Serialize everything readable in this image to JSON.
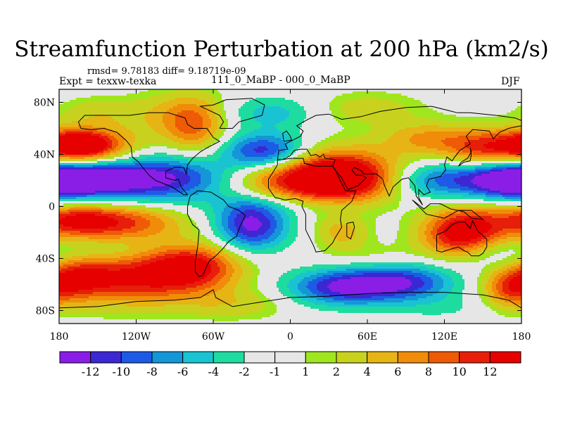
{
  "header": {
    "title": "Streamfunction Perturbation at 200 hPa (km2/s)",
    "stats": "rmsd= 9.78183 diff= 9.18719e-09",
    "expt": "Expt = texxw-texka",
    "experiment_names": "111_0_MaBP - 000_0_MaBP",
    "season": "DJF"
  },
  "chart_data": {
    "type": "heatmap",
    "title": "Streamfunction Perturbation at 200 hPa (km2/s)",
    "xlim": [
      -180,
      180
    ],
    "ylim": [
      -90,
      90
    ],
    "x_ticks": [
      {
        "value": -180,
        "label": "180"
      },
      {
        "value": -120,
        "label": "120W"
      },
      {
        "value": -60,
        "label": "60W"
      },
      {
        "value": 0,
        "label": "0"
      },
      {
        "value": 60,
        "label": "60E"
      },
      {
        "value": 120,
        "label": "120E"
      },
      {
        "value": 180,
        "label": "180"
      }
    ],
    "y_ticks": [
      {
        "value": 80,
        "label": "80N"
      },
      {
        "value": 40,
        "label": "40N"
      },
      {
        "value": 0,
        "label": "0"
      },
      {
        "value": -40,
        "label": "40S"
      },
      {
        "value": -80,
        "label": "80S"
      }
    ],
    "levels": [
      -12,
      -10,
      -8,
      -6,
      -4,
      -2,
      -1,
      1,
      2,
      4,
      6,
      8,
      10,
      12
    ],
    "level_labels": [
      "-12",
      "-10",
      "-8",
      "-6",
      "-4",
      "-2",
      "-1",
      "1",
      "2",
      "4",
      "6",
      "8",
      "10",
      "12"
    ],
    "colors": [
      "#8b1ee6",
      "#3c28d2",
      "#1e5ae6",
      "#1496d7",
      "#19c3d2",
      "#1edca0",
      "#e6e6e6",
      "#e6e6e6",
      "#a0e61e",
      "#c8d21e",
      "#e6b414",
      "#f08c0a",
      "#ee5a05",
      "#e61e0a",
      "#e60000"
    ],
    "features": [
      {
        "lon": -163,
        "lat": 47,
        "value": 12,
        "width": 18,
        "height": 8
      },
      {
        "lon": -150,
        "lat": 43,
        "value": 8,
        "width": 28,
        "height": 12
      },
      {
        "lon": -100,
        "lat": 22,
        "value": -13,
        "width": 42,
        "height": 13
      },
      {
        "lon": -155,
        "lat": 22,
        "value": -11,
        "width": 26,
        "height": 11
      },
      {
        "lon": -75,
        "lat": 60,
        "value": 7,
        "width": 16,
        "height": 16
      },
      {
        "lon": -90,
        "lat": 70,
        "value": 4,
        "width": 26,
        "height": 12
      },
      {
        "lon": -20,
        "lat": 42,
        "value": -12,
        "width": 22,
        "height": 10
      },
      {
        "lon": 10,
        "lat": 20,
        "value": 13,
        "width": 40,
        "height": 13
      },
      {
        "lon": 45,
        "lat": 24,
        "value": 11,
        "width": 28,
        "height": 14
      },
      {
        "lon": -30,
        "lat": -14,
        "value": -13,
        "width": 20,
        "height": 14
      },
      {
        "lon": -130,
        "lat": -12,
        "value": 10,
        "width": 32,
        "height": 10
      },
      {
        "lon": -165,
        "lat": -10,
        "value": 8,
        "width": 20,
        "height": 9
      },
      {
        "lon": -120,
        "lat": -55,
        "value": 12,
        "width": 42,
        "height": 14
      },
      {
        "lon": -75,
        "lat": -45,
        "value": 10,
        "width": 25,
        "height": 12
      },
      {
        "lon": -170,
        "lat": -55,
        "value": 8,
        "width": 20,
        "height": 12
      },
      {
        "lon": 40,
        "lat": -62,
        "value": -12,
        "width": 30,
        "height": 10
      },
      {
        "lon": 90,
        "lat": -58,
        "value": -10,
        "width": 28,
        "height": 10
      },
      {
        "lon": 130,
        "lat": -22,
        "value": 11,
        "width": 20,
        "height": 12
      },
      {
        "lon": 150,
        "lat": -12,
        "value": 7,
        "width": 24,
        "height": 12
      },
      {
        "lon": 120,
        "lat": 20,
        "value": -9,
        "width": 30,
        "height": 10
      },
      {
        "lon": 170,
        "lat": 20,
        "value": -12,
        "width": 22,
        "height": 11
      },
      {
        "lon": 155,
        "lat": 45,
        "value": 11,
        "width": 24,
        "height": 10
      },
      {
        "lon": 105,
        "lat": 52,
        "value": 6,
        "width": 24,
        "height": 9
      },
      {
        "lon": 40,
        "lat": -20,
        "value": 5,
        "width": 14,
        "height": 8
      },
      {
        "lon": -15,
        "lat": 72,
        "value": -5,
        "width": 25,
        "height": 9
      },
      {
        "lon": -150,
        "lat": 72,
        "value": 3,
        "width": 22,
        "height": 8
      },
      {
        "lon": 60,
        "lat": 75,
        "value": 3,
        "width": 30,
        "height": 9
      },
      {
        "lon": -150,
        "lat": -35,
        "value": -2,
        "width": 30,
        "height": 7
      },
      {
        "lon": 60,
        "lat": -38,
        "value": 2,
        "width": 30,
        "height": 7
      },
      {
        "lon": 0,
        "lat": 2,
        "value": -3,
        "width": 40,
        "height": 7
      },
      {
        "lon": 165,
        "lat": -40,
        "value": -3,
        "width": 20,
        "height": 9
      },
      {
        "lon": 170,
        "lat": -65,
        "value": 6,
        "width": 14,
        "height": 10
      },
      {
        "lon": -40,
        "lat": -75,
        "value": 3,
        "width": 30,
        "height": 8
      },
      {
        "lon": 120,
        "lat": -78,
        "value": -2,
        "width": 30,
        "height": 8
      }
    ]
  }
}
